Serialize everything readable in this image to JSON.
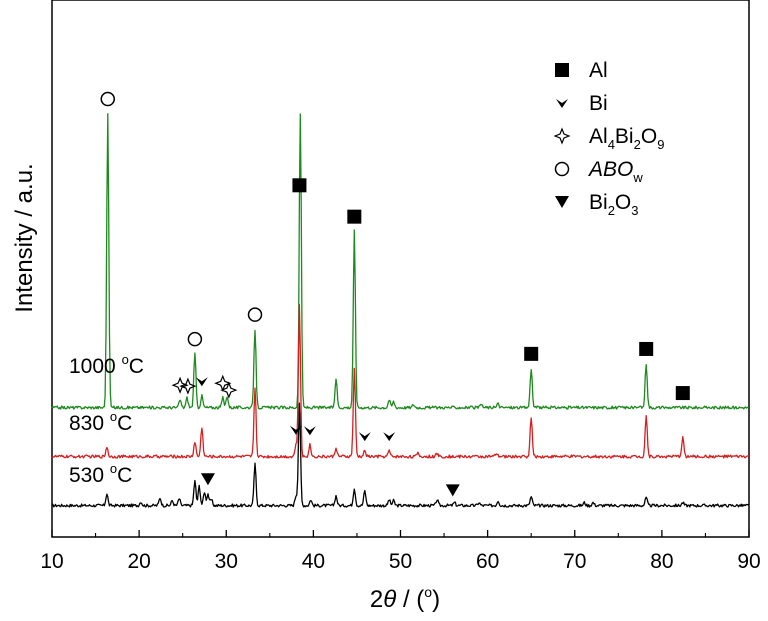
{
  "chart_data": {
    "type": "line",
    "xlabel_main": "2",
    "xlabel_var": "θ",
    "xlabel_unit_open": " / (",
    "xlabel_unit_sup": "o",
    "xlabel_unit_close": ")",
    "ylabel": "Intensity / a.u.",
    "xlim": [
      10,
      90
    ],
    "xticks": [
      "10",
      "20",
      "30",
      "40",
      "50",
      "60",
      "70",
      "80",
      "90"
    ],
    "grid": false,
    "legend_position": "top-right",
    "legend": [
      {
        "marker": "filled-square",
        "text": "Al"
      },
      {
        "marker": "arrowhead",
        "text": "Bi"
      },
      {
        "marker": "four-point-star",
        "text": "Al",
        "sub1": "4",
        "mid1": "Bi",
        "sub2": "2",
        "mid2": "O",
        "sub3": "9"
      },
      {
        "marker": "open-circle",
        "text": "ABO",
        "text_italic": true,
        "sub1": "w"
      },
      {
        "marker": "filled-down-triangle",
        "text": "Bi",
        "sub1": "2",
        "mid1": "O",
        "sub2": "3"
      }
    ],
    "series": [
      {
        "name": "530 °C",
        "label_num": "530 ",
        "label_sup": "o",
        "label_unit": "C",
        "color": "#000000",
        "baseline": 0.0,
        "peaks": [
          [
            16.3,
            0.12
          ],
          [
            20.2,
            0.04
          ],
          [
            22.4,
            0.08
          ],
          [
            23.8,
            0.05
          ],
          [
            24.6,
            0.07
          ],
          [
            26.4,
            0.25
          ],
          [
            26.9,
            0.2
          ],
          [
            27.5,
            0.14
          ],
          [
            27.9,
            0.12
          ],
          [
            28.3,
            0.06
          ],
          [
            33.3,
            0.42
          ],
          [
            38.0,
            0.1
          ],
          [
            38.4,
            1.05
          ],
          [
            39.7,
            0.06
          ],
          [
            42.6,
            0.1
          ],
          [
            44.7,
            0.18
          ],
          [
            45.9,
            0.15
          ],
          [
            48.7,
            0.06
          ],
          [
            49.2,
            0.05
          ],
          [
            54.2,
            0.06
          ],
          [
            56.2,
            0.03
          ],
          [
            59.0,
            0.03
          ],
          [
            61.2,
            0.05
          ],
          [
            65.0,
            0.09
          ],
          [
            71.1,
            0.03
          ],
          [
            72.1,
            0.03
          ],
          [
            78.2,
            0.08
          ],
          [
            82.4,
            0.03
          ]
        ]
      },
      {
        "name": "830 °C",
        "label_num": "830 ",
        "label_sup": "o",
        "label_unit": "C",
        "color": "#d42020",
        "baseline": 0.5,
        "peaks": [
          [
            16.3,
            0.1
          ],
          [
            26.4,
            0.15
          ],
          [
            27.2,
            0.3
          ],
          [
            33.3,
            0.7
          ],
          [
            38.0,
            0.12
          ],
          [
            38.4,
            1.55
          ],
          [
            39.6,
            0.12
          ],
          [
            42.6,
            0.09
          ],
          [
            44.7,
            0.9
          ],
          [
            45.9,
            0.06
          ],
          [
            48.7,
            0.06
          ],
          [
            52.0,
            0.03
          ],
          [
            54.2,
            0.03
          ],
          [
            61.0,
            0.03
          ],
          [
            65.0,
            0.4
          ],
          [
            78.2,
            0.42
          ],
          [
            82.4,
            0.2
          ]
        ]
      },
      {
        "name": "1000 °C",
        "label_num": "1000 ",
        "label_sup": "o",
        "label_unit": "C",
        "color": "#1e8a1e",
        "baseline": 1.0,
        "peaks": [
          [
            16.4,
            3.0
          ],
          [
            24.7,
            0.08
          ],
          [
            25.5,
            0.1
          ],
          [
            26.4,
            0.55
          ],
          [
            27.2,
            0.12
          ],
          [
            29.6,
            0.1
          ],
          [
            30.1,
            0.12
          ],
          [
            33.3,
            0.8
          ],
          [
            38.5,
            3.0
          ],
          [
            42.6,
            0.3
          ],
          [
            44.7,
            1.8
          ],
          [
            48.7,
            0.08
          ],
          [
            49.2,
            0.06
          ],
          [
            51.5,
            0.03
          ],
          [
            59.3,
            0.03
          ],
          [
            61.2,
            0.04
          ],
          [
            65.0,
            0.4
          ],
          [
            78.2,
            0.45
          ]
        ]
      }
    ],
    "annotations": [
      {
        "marker": "filled-square",
        "x": 38.4,
        "series": 2
      },
      {
        "marker": "filled-square",
        "x": 44.7,
        "series": 2
      },
      {
        "marker": "filled-square",
        "x": 65.0,
        "series": 2
      },
      {
        "marker": "filled-square",
        "x": 78.2,
        "series": 2
      },
      {
        "marker": "filled-square",
        "x": 82.4,
        "series": 2
      },
      {
        "marker": "open-circle",
        "x": 16.4,
        "series": 2
      },
      {
        "marker": "open-circle",
        "x": 26.4,
        "series": 2
      },
      {
        "marker": "open-circle",
        "x": 33.3,
        "series": 2
      },
      {
        "marker": "four-point-star",
        "x": 24.7,
        "series": 2
      },
      {
        "marker": "four-point-star",
        "x": 25.6,
        "series": 2
      },
      {
        "marker": "four-point-star",
        "x": 29.6,
        "series": 2
      },
      {
        "marker": "four-point-star",
        "x": 30.3,
        "series": 2
      },
      {
        "marker": "arrowhead",
        "x": 27.2,
        "series": 2
      },
      {
        "marker": "arrowhead",
        "x": 38.0,
        "series": 1
      },
      {
        "marker": "arrowhead",
        "x": 39.6,
        "series": 1
      },
      {
        "marker": "arrowhead",
        "x": 45.9,
        "series": 1
      },
      {
        "marker": "arrowhead",
        "x": 48.7,
        "series": 1
      },
      {
        "marker": "filled-down-triangle",
        "x": 27.9,
        "series": 0
      },
      {
        "marker": "filled-down-triangle",
        "x": 56.0,
        "series": 0
      }
    ]
  }
}
